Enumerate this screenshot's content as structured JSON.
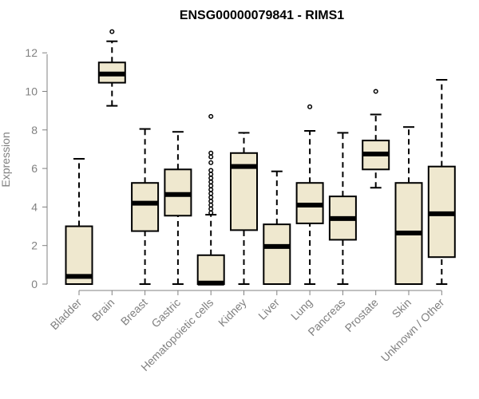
{
  "chart_data": {
    "type": "boxplot",
    "title": "ENSG00000079841 - RIMS1",
    "ylabel": "Expression",
    "xlabel": "",
    "ylim": [
      0,
      12.6
    ],
    "yticks": [
      0,
      2,
      4,
      6,
      8,
      10,
      12
    ],
    "box_color": "#efe8cf",
    "categories": [
      "Bladder",
      "Brain",
      "Breast",
      "Gastric",
      "Hematopoietic cells",
      "Kidney",
      "Liver",
      "Lung",
      "Pancreas",
      "Prostate",
      "Skin",
      "Unknown / Other"
    ],
    "boxes": [
      {
        "min": 0,
        "q1": 0,
        "median": 0.4,
        "q3": 3.0,
        "max": 6.5,
        "outliers": []
      },
      {
        "min": 9.25,
        "q1": 10.45,
        "median": 10.9,
        "q3": 11.5,
        "max": 12.6,
        "outliers": [
          13.1
        ]
      },
      {
        "min": 0,
        "q1": 2.75,
        "median": 4.2,
        "q3": 5.25,
        "max": 8.05,
        "outliers": []
      },
      {
        "min": 0,
        "q1": 3.55,
        "median": 4.65,
        "q3": 5.95,
        "max": 7.9,
        "outliers": []
      },
      {
        "min": 0,
        "q1": 0,
        "median": 0.05,
        "q3": 1.5,
        "max": 3.6,
        "outliers": [
          3.7,
          3.9,
          4.1,
          4.3,
          4.5,
          4.7,
          4.9,
          5.1,
          5.3,
          5.5,
          5.7,
          5.9,
          6.3,
          6.6,
          6.8,
          8.7
        ]
      },
      {
        "min": 0,
        "q1": 2.8,
        "median": 6.1,
        "q3": 6.8,
        "max": 7.85,
        "outliers": []
      },
      {
        "min": 0,
        "q1": 0,
        "median": 1.95,
        "q3": 3.1,
        "max": 5.85,
        "outliers": []
      },
      {
        "min": 0,
        "q1": 3.15,
        "median": 4.1,
        "q3": 5.25,
        "max": 7.95,
        "outliers": [
          9.2
        ]
      },
      {
        "min": 0,
        "q1": 2.3,
        "median": 3.4,
        "q3": 4.55,
        "max": 7.85,
        "outliers": []
      },
      {
        "min": 5.0,
        "q1": 5.95,
        "median": 6.75,
        "q3": 7.45,
        "max": 8.8,
        "outliers": [
          10.0
        ]
      },
      {
        "min": 0,
        "q1": 0,
        "median": 2.65,
        "q3": 5.25,
        "max": 8.15,
        "outliers": []
      },
      {
        "min": 0,
        "q1": 1.4,
        "median": 3.65,
        "q3": 6.1,
        "max": 10.6,
        "outliers": []
      }
    ]
  }
}
